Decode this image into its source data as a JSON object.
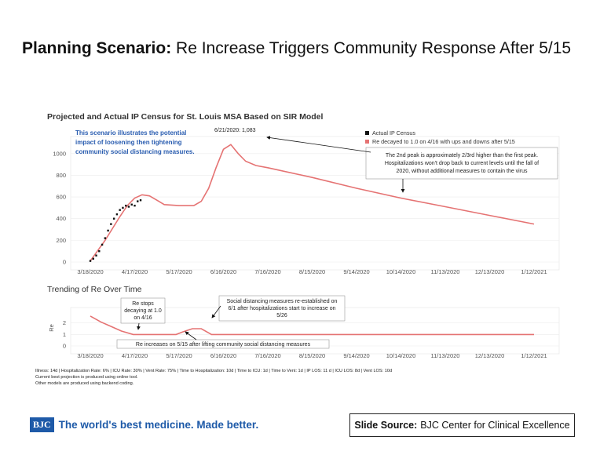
{
  "slide": {
    "title_bold": "Planning Scenario:",
    "title_rest": " Re Increase Triggers Community Response After 5/15",
    "footnotes": [
      "Illness: 14d | Hospitalization Rate: 6% | ICU Rate: 30% | Vent Rate: 75% | Time to Hospitalization: 10d | Time to ICU: 1d | Time to Vent: 1d | IP LOS: 11 d | ICU LOS: 8d | Vent LOS: 10d",
      "Current best projection is produced using online tool.",
      "Other models are produced using backend coding."
    ],
    "logo_text": "BJC",
    "tagline": "The world's best medicine. Made better.",
    "source_label": "Slide Source:",
    "source_value": "BJC Center for Clinical Excellence"
  },
  "chart_data": [
    {
      "type": "line",
      "title": "Projected and Actual IP Census for St. Louis MSA Based on SIR Model",
      "x_tick_labels": [
        "3/18/2020",
        "4/17/2020",
        "5/17/2020",
        "6/16/2020",
        "7/16/2020",
        "8/15/2020",
        "9/14/2020",
        "10/14/2020",
        "11/13/2020",
        "12/13/2020",
        "1/12/2021"
      ],
      "y_tick_labels": [
        "0",
        "200",
        "400",
        "600",
        "800",
        "1000"
      ],
      "ylim": [
        0,
        1100
      ],
      "xlim": [
        "3/18/2020",
        "1/12/2021"
      ],
      "legend_placement": "top-right",
      "series": [
        {
          "name": "Actual IP Census",
          "style": "points",
          "color": "#111111",
          "x": [
            "3/18/2020",
            "3/20/2020",
            "3/22/2020",
            "3/24/2020",
            "3/26/2020",
            "3/28/2020",
            "3/30/2020",
            "4/1/2020",
            "4/3/2020",
            "4/5/2020",
            "4/7/2020",
            "4/9/2020",
            "4/11/2020",
            "4/13/2020",
            "4/15/2020",
            "4/17/2020",
            "4/19/2020",
            "4/21/2020"
          ],
          "y": [
            10,
            30,
            60,
            100,
            160,
            220,
            290,
            350,
            400,
            440,
            480,
            500,
            520,
            510,
            530,
            520,
            560,
            570
          ]
        },
        {
          "name": "Re decayed to 1.0 on 4/16 with ups and downs after 5/15",
          "style": "line",
          "color": "#e57373",
          "x": [
            "3/18/2020",
            "3/28/2020",
            "4/7/2020",
            "4/12/2020",
            "4/17/2020",
            "4/22/2020",
            "4/27/2020",
            "5/2/2020",
            "5/7/2020",
            "5/17/2020",
            "5/27/2020",
            "6/1/2020",
            "6/6/2020",
            "6/11/2020",
            "6/16/2020",
            "6/21/2020",
            "6/26/2020",
            "7/1/2020",
            "7/8/2020",
            "7/16/2020",
            "8/15/2020",
            "9/14/2020",
            "10/14/2020",
            "11/13/2020",
            "12/13/2020",
            "1/12/2021"
          ],
          "y": [
            10,
            200,
            420,
            520,
            590,
            620,
            610,
            570,
            530,
            520,
            520,
            560,
            680,
            870,
            1040,
            1083,
            1000,
            930,
            890,
            870,
            780,
            680,
            590,
            510,
            430,
            350
          ]
        }
      ],
      "annotations": {
        "peak_label": "6/21/2020: 1,083",
        "scenario_note": [
          "This scenario illustrates the potential",
          "impact of loosening then tightening",
          "community social distancing measures."
        ],
        "peak_note_line1": "The 2nd peak is approximately 2/3rd higher than the first peak.",
        "peak_note_line2": "Hospitalizations won't drop back to current levels until the fall of",
        "peak_note_line3": "2020, without additional measures to contain the virus"
      }
    },
    {
      "type": "line",
      "title": "Trending of Re Over Time",
      "ylabel": "Re",
      "x_tick_labels": [
        "3/18/2020",
        "4/17/2020",
        "5/17/2020",
        "6/16/2020",
        "7/16/2020",
        "8/15/2020",
        "9/14/2020",
        "10/14/2020",
        "11/13/2020",
        "12/13/2020",
        "1/12/2021"
      ],
      "y_tick_labels": [
        "0",
        "1",
        "2"
      ],
      "ylim": [
        0,
        2.8
      ],
      "series": [
        {
          "name": "Re",
          "style": "line",
          "color": "#e57373",
          "x": [
            "3/18/2020",
            "3/25/2020",
            "4/1/2020",
            "4/8/2020",
            "4/16/2020",
            "5/15/2020",
            "5/20/2020",
            "5/26/2020",
            "6/1/2020",
            "6/8/2020",
            "1/12/2021"
          ],
          "y": [
            2.6,
            2.1,
            1.7,
            1.3,
            1.0,
            1.0,
            1.25,
            1.5,
            1.5,
            1.0,
            1.0
          ]
        }
      ],
      "annotations": {
        "stop_decay": [
          "Re stops",
          "decaying at 1.0",
          "on 4/16"
        ],
        "reestablish": [
          "Social distancing measures re-established on",
          "6/1 after hospitalizations start to increase on",
          "5/26"
        ],
        "increase_note": "Re increases on 5/15 after lifting community social distancing measures"
      }
    }
  ]
}
